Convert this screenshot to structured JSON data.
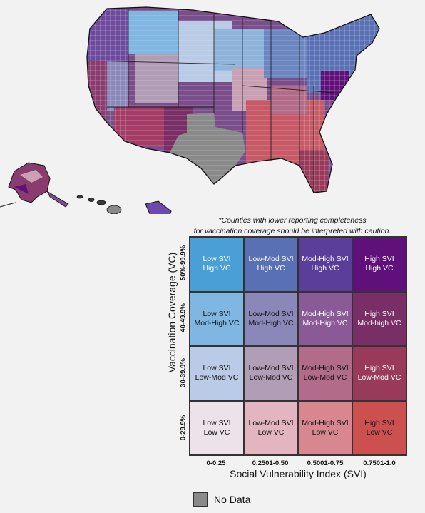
{
  "map": {
    "colors": {
      "no_data": "#8a8a8a",
      "state_border": "#111111",
      "county_border": "#e8e8e8"
    }
  },
  "legend": {
    "note_line1": "*Counties with lower reporting completeness",
    "note_line2": "for vaccination coverage should be interpreted with caution.",
    "y_title": "Vaccination Coverage (VC)",
    "x_title": "Social Vulnerability Index (SVI)",
    "vc_levels": [
      "50%-99.9%",
      "40-49.9%",
      "30-39.9%",
      "0-29.9%"
    ],
    "svi_levels": [
      "0-0.25",
      "0.2501-0.50",
      "0.5001-0.75",
      "0.7501-1.0"
    ],
    "rows": [
      [
        {
          "l1": "Low SVI",
          "l2": "High VC",
          "color": "#4a9fd6",
          "text": "#ffffff"
        },
        {
          "l1": "Low-Mod SVI",
          "l2": "High VC",
          "color": "#5a70b5",
          "text": "#ffffff"
        },
        {
          "l1": "Mod-High SVI",
          "l2": "High VC",
          "color": "#5b3d9a",
          "text": "#ffffff"
        },
        {
          "l1": "High SVI",
          "l2": "High VC",
          "color": "#60107a",
          "text": "#ffffff"
        }
      ],
      [
        {
          "l1": "Low SVI",
          "l2": "Mod-High VC",
          "color": "#7fb6e2",
          "text": "#111111"
        },
        {
          "l1": "Low-Mod SVI",
          "l2": "Mod-High VC",
          "color": "#8a88b8",
          "text": "#111111"
        },
        {
          "l1": "Mod-High SVI",
          "l2": "Mod-High VC",
          "color": "#8a5a96",
          "text": "#ffffff"
        },
        {
          "l1": "High SVI",
          "l2": "Mod-high VC",
          "color": "#7a2e66",
          "text": "#ffffff"
        }
      ],
      [
        {
          "l1": "Low SVI",
          "l2": "Low-Mod VC",
          "color": "#b9cbe6",
          "text": "#111111"
        },
        {
          "l1": "Low-Mod SVI",
          "l2": "Low-Mod VC",
          "color": "#b29db6",
          "text": "#111111"
        },
        {
          "l1": "Mod-High SVI",
          "l2": "Low-Mod VC",
          "color": "#b26c8a",
          "text": "#111111"
        },
        {
          "l1": "High SVI",
          "l2": "Low-Mod VC",
          "color": "#993a5a",
          "text": "#ffffff"
        }
      ],
      [
        {
          "l1": "Low SVI",
          "l2": "Low VC",
          "color": "#ece2ea",
          "text": "#111111"
        },
        {
          "l1": "Low-Mod SVI",
          "l2": "Low VC",
          "color": "#e3b5c0",
          "text": "#111111"
        },
        {
          "l1": "Mod-High SVI",
          "l2": "Low VC",
          "color": "#d88790",
          "text": "#111111"
        },
        {
          "l1": "High SVI",
          "l2": "Low VC",
          "color": "#cc5050",
          "text": "#111111"
        }
      ]
    ],
    "no_data_label": "No Data",
    "no_data_color": "#8a8a8a"
  }
}
